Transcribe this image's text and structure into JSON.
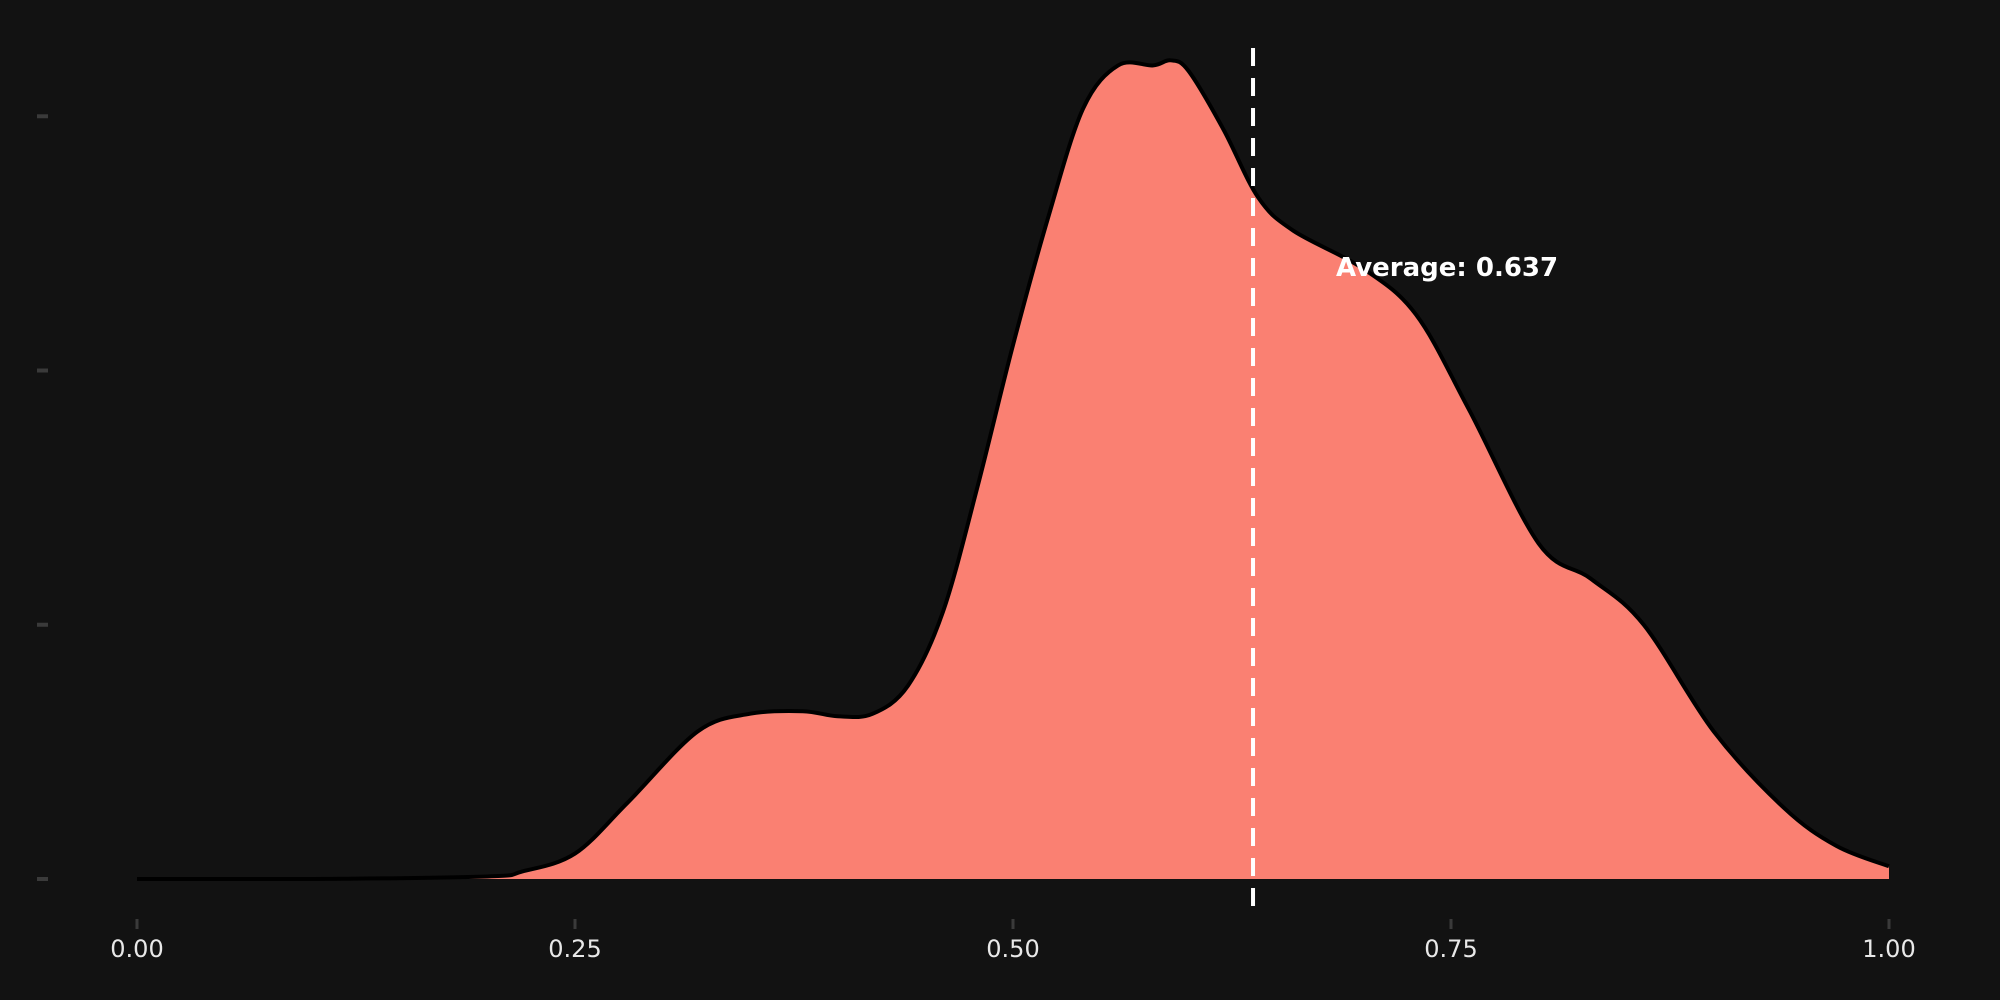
{
  "colors": {
    "background": "#121212",
    "fill": "#fa8072",
    "outline": "#000000",
    "average_line": "#ffffff",
    "tick": "#3a3a3a",
    "text": "#e8e8e8"
  },
  "chart_data": {
    "type": "area",
    "title": "",
    "xlabel": "",
    "ylabel": "",
    "xlim": [
      0,
      1
    ],
    "ylim": [
      0,
      3.3
    ],
    "grid": false,
    "legend": "none",
    "x_ticks": [
      "0.00",
      "0.25",
      "0.50",
      "0.75",
      "1.00"
    ],
    "x_tick_values": [
      0,
      0.25,
      0.5,
      0.75,
      1.0
    ],
    "y_tick_values": [
      0,
      1,
      2,
      3
    ],
    "y_tick_labels_visible": false,
    "average": 0.637,
    "annotation": "Average: 0.637",
    "series": [
      {
        "x": [
          0.0,
          0.1,
          0.2,
          0.22,
          0.25,
          0.28,
          0.32,
          0.35,
          0.38,
          0.4,
          0.42,
          0.44,
          0.46,
          0.48,
          0.5,
          0.52,
          0.54,
          0.56,
          0.58,
          0.59,
          0.6,
          0.62,
          0.64,
          0.66,
          0.7,
          0.73,
          0.76,
          0.8,
          0.83,
          0.86,
          0.9,
          0.94,
          0.97,
          1.0
        ],
        "y": [
          0.0,
          0.0,
          0.01,
          0.03,
          0.1,
          0.3,
          0.58,
          0.65,
          0.66,
          0.64,
          0.65,
          0.76,
          1.05,
          1.55,
          2.1,
          2.6,
          3.03,
          3.2,
          3.2,
          3.22,
          3.18,
          2.95,
          2.68,
          2.55,
          2.4,
          2.22,
          1.85,
          1.32,
          1.18,
          1.0,
          0.58,
          0.28,
          0.13,
          0.05
        ]
      }
    ]
  }
}
